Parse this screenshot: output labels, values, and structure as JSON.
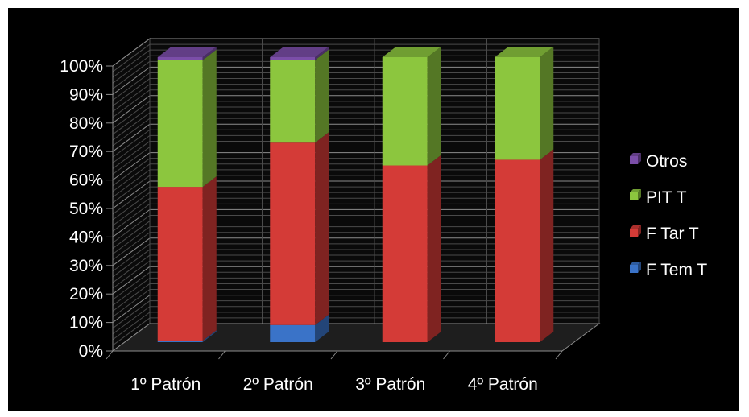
{
  "chart_data": {
    "type": "bar",
    "stacked": true,
    "three_d": true,
    "background": "#000000",
    "title": "",
    "xlabel": "",
    "ylabel": "",
    "ylim": [
      0,
      100
    ],
    "y_ticks": [
      "0%",
      "10%",
      "20%",
      "30%",
      "40%",
      "50%",
      "60%",
      "70%",
      "80%",
      "90%",
      "100%"
    ],
    "categories": [
      "1º Patrón",
      "2º Patrón",
      "3º Patrón",
      "4º Patrón"
    ],
    "series": [
      {
        "name": "F Tem T",
        "color": "#3a73c8",
        "values": [
          0.5,
          6,
          0,
          0
        ]
      },
      {
        "name": "F Tar T",
        "color": "#d43b37",
        "values": [
          54,
          64,
          62,
          64
        ]
      },
      {
        "name": "PIT T",
        "color": "#8cc63e",
        "values": [
          44.5,
          29,
          38,
          36
        ]
      },
      {
        "name": "Otros",
        "color": "#7b4ea8",
        "values": [
          1,
          1,
          0,
          0
        ]
      }
    ],
    "grid": true,
    "legend_position": "right"
  }
}
